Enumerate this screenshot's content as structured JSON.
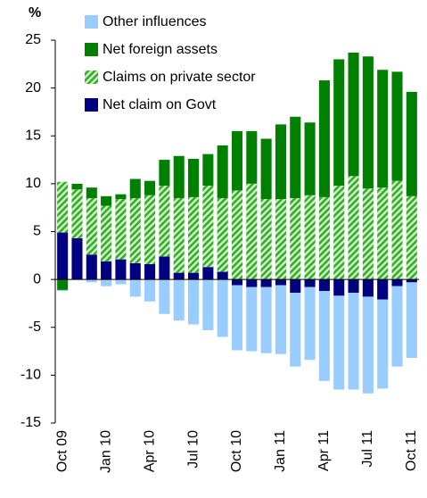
{
  "chart_data": {
    "type": "stacked_bar",
    "y_label": "%",
    "categories": [
      "Oct 09",
      null,
      null,
      "Jan 10",
      null,
      null,
      "Apr 10",
      null,
      null,
      "Jul 10",
      null,
      null,
      "Oct 10",
      null,
      null,
      "Jan 11",
      null,
      null,
      "Apr 11",
      null,
      null,
      "Jul 11",
      null,
      null,
      "Oct 11"
    ],
    "series": [
      {
        "name": "Net claim on Govt",
        "color": "#000080",
        "values": [
          4.9,
          4.3,
          2.6,
          1.9,
          2.1,
          1.7,
          1.6,
          2.4,
          0.7,
          0.7,
          1.3,
          0.8,
          -0.6,
          -0.8,
          -0.8,
          -0.6,
          -1.4,
          -0.8,
          -1.2,
          -1.7,
          -1.4,
          -1.8,
          -2.1,
          -0.7,
          -0.3
        ]
      },
      {
        "name": "Claims on private sector",
        "color": "#33aa33",
        "pattern": "hatch",
        "values": [
          5.3,
          5.1,
          5.9,
          5.8,
          6.3,
          6.8,
          7.2,
          7.4,
          7.8,
          7.9,
          8.5,
          7.7,
          9.3,
          10.0,
          8.4,
          8.4,
          8.5,
          8.8,
          8.6,
          9.8,
          10.8,
          9.5,
          9.6,
          10.3,
          8.7
        ]
      },
      {
        "name": "Net foreign assets",
        "color": "#008000",
        "values": [
          -1.1,
          0.6,
          1.1,
          1.0,
          0.5,
          2.0,
          1.5,
          2.7,
          4.4,
          4.0,
          3.3,
          5.5,
          6.2,
          5.5,
          6.3,
          7.8,
          8.5,
          7.6,
          12.2,
          13.2,
          12.9,
          13.8,
          12.3,
          11.4,
          10.9
        ]
      },
      {
        "name": "Other influences",
        "color": "#99ccff",
        "values": [
          -0.1,
          0,
          -0.3,
          -0.7,
          -0.5,
          -1.8,
          -2.3,
          -3.6,
          -4.3,
          -4.7,
          -5.3,
          -6.0,
          -6.8,
          -6.7,
          -6.9,
          -7.2,
          -7.7,
          -7.6,
          -9.4,
          -9.8,
          -10.1,
          -10.1,
          -9.3,
          -8.4,
          -7.9
        ]
      }
    ],
    "ylim": [
      -15,
      25
    ],
    "yticks": [
      -15,
      -10,
      -5,
      0,
      5,
      10,
      15,
      20,
      25
    ],
    "legend": "top-left"
  }
}
